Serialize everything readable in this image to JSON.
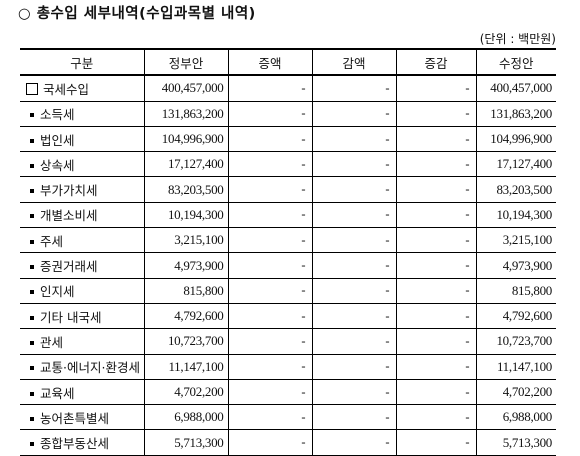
{
  "title": "○ 총수입 세부내역(수입과목별 내역)",
  "unit": "(단위 : 백만원)",
  "columns": [
    "구분",
    "정부안",
    "증액",
    "감액",
    "증감",
    "수정안"
  ],
  "rows": [
    {
      "label": "국세수입",
      "marker": "square",
      "gov": "400,457,000",
      "inc": "-",
      "dec": "-",
      "diff": "-",
      "rev": "400,457,000"
    },
    {
      "label": "소득세",
      "marker": "bullet",
      "gov": "131,863,200",
      "inc": "-",
      "dec": "-",
      "diff": "-",
      "rev": "131,863,200"
    },
    {
      "label": "법인세",
      "marker": "bullet",
      "gov": "104,996,900",
      "inc": "-",
      "dec": "-",
      "diff": "-",
      "rev": "104,996,900"
    },
    {
      "label": "상속세",
      "marker": "bullet",
      "gov": "17,127,400",
      "inc": "-",
      "dec": "-",
      "diff": "-",
      "rev": "17,127,400"
    },
    {
      "label": "부가가치세",
      "marker": "bullet",
      "gov": "83,203,500",
      "inc": "-",
      "dec": "-",
      "diff": "-",
      "rev": "83,203,500"
    },
    {
      "label": "개별소비세",
      "marker": "bullet",
      "gov": "10,194,300",
      "inc": "-",
      "dec": "-",
      "diff": "-",
      "rev": "10,194,300"
    },
    {
      "label": "주세",
      "marker": "bullet",
      "gov": "3,215,100",
      "inc": "-",
      "dec": "-",
      "diff": "-",
      "rev": "3,215,100"
    },
    {
      "label": "증권거래세",
      "marker": "bullet",
      "gov": "4,973,900",
      "inc": "-",
      "dec": "-",
      "diff": "-",
      "rev": "4,973,900"
    },
    {
      "label": "인지세",
      "marker": "bullet",
      "gov": "815,800",
      "inc": "-",
      "dec": "-",
      "diff": "-",
      "rev": "815,800"
    },
    {
      "label": "기타 내국세",
      "marker": "bullet",
      "gov": "4,792,600",
      "inc": "-",
      "dec": "-",
      "diff": "-",
      "rev": "4,792,600"
    },
    {
      "label": "관세",
      "marker": "bullet",
      "gov": "10,723,700",
      "inc": "-",
      "dec": "-",
      "diff": "-",
      "rev": "10,723,700"
    },
    {
      "label": "교통·에너지·환경세",
      "marker": "bullet",
      "gov": "11,147,100",
      "inc": "-",
      "dec": "-",
      "diff": "-",
      "rev": "11,147,100"
    },
    {
      "label": "교육세",
      "marker": "bullet",
      "gov": "4,702,200",
      "inc": "-",
      "dec": "-",
      "diff": "-",
      "rev": "4,702,200"
    },
    {
      "label": "농어촌특별세",
      "marker": "bullet",
      "gov": "6,988,000",
      "inc": "-",
      "dec": "-",
      "diff": "-",
      "rev": "6,988,000"
    },
    {
      "label": "종합부동산세",
      "marker": "bullet",
      "gov": "5,713,300",
      "inc": "-",
      "dec": "-",
      "diff": "-",
      "rev": "5,713,300"
    }
  ]
}
